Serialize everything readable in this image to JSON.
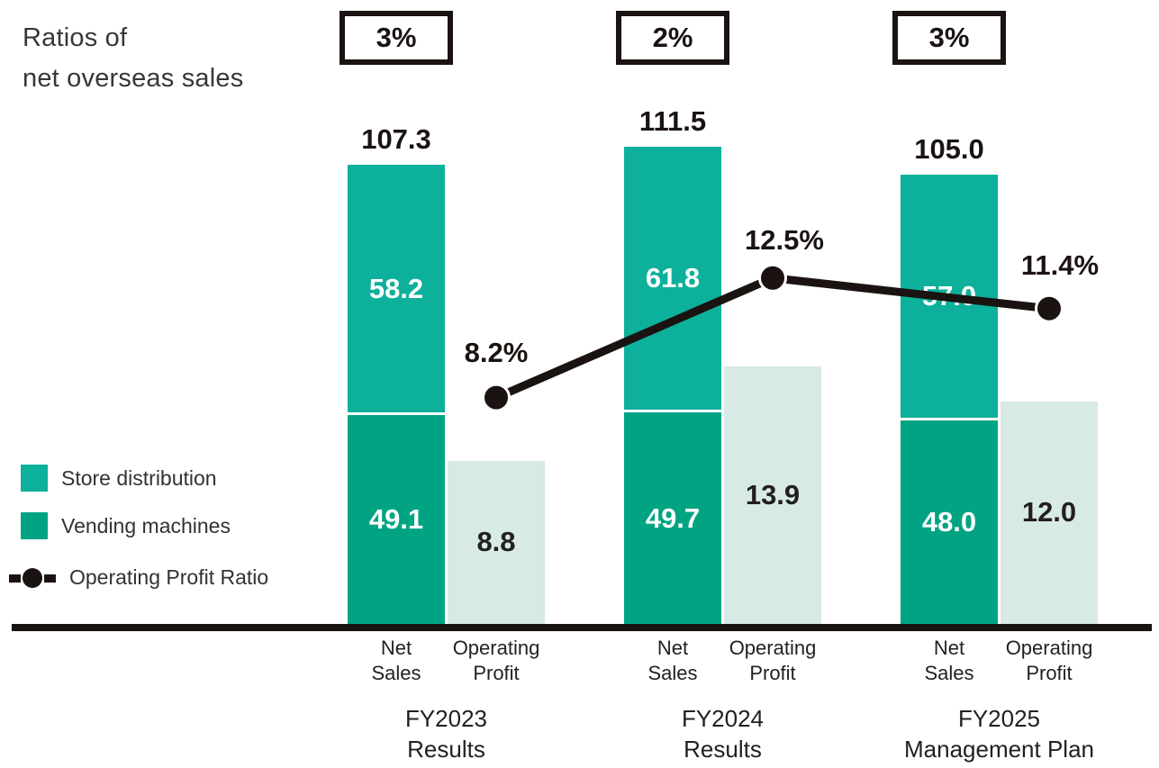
{
  "title": {
    "line1": "Ratios of",
    "line2": "net overseas sales"
  },
  "legend": {
    "items": [
      {
        "label": "Store distribution"
      },
      {
        "label": "Vending machines"
      },
      {
        "label": "Operating Profit Ratio"
      }
    ]
  },
  "colors": {
    "store_distribution": "#0db09b",
    "vending_machines": "#00a482",
    "operating_profit_bar": "#d7eae5",
    "ratio_line": "#1a1311",
    "text_dark": "#231f20"
  },
  "chart_data": {
    "type": "bar",
    "subtype": "stacked-bars-with-ratio-line",
    "title": "Ratios of net overseas sales",
    "categories": [
      "FY2023 Results",
      "FY2024 Results",
      "FY2025 Management Plan"
    ],
    "overseas_sales_ratio_boxes": [
      "3%",
      "2%",
      "3%"
    ],
    "bar_column_labels": {
      "net_sales": [
        "Net",
        "Sales"
      ],
      "operating_profit": [
        "Operating",
        "Profit"
      ]
    },
    "series": [
      {
        "name": "Store distribution",
        "values": [
          58.2,
          61.8,
          57.0
        ]
      },
      {
        "name": "Vending machines",
        "values": [
          49.1,
          49.7,
          48.0
        ]
      },
      {
        "name": "Net sales total",
        "values": [
          107.3,
          111.5,
          105.0
        ]
      },
      {
        "name": "Operating Profit",
        "values": [
          8.8,
          13.9,
          12.0
        ]
      },
      {
        "name": "Operating Profit Ratio",
        "values_percent": [
          8.2,
          12.5,
          11.4
        ]
      }
    ],
    "legend_position": "left-middle",
    "grid": false,
    "groups": [
      {
        "period_line1": "FY2023",
        "period_line2": "Results",
        "overseas_sales_ratio": "3%",
        "net_sales_total": "107.3",
        "store_distribution": "58.2",
        "vending_machines": "49.1",
        "operating_profit": "8.8",
        "operating_profit_ratio": "8.2%"
      },
      {
        "period_line1": "FY2024",
        "period_line2": "Results",
        "overseas_sales_ratio": "2%",
        "net_sales_total": "111.5",
        "store_distribution": "61.8",
        "vending_machines": "49.7",
        "operating_profit": "13.9",
        "operating_profit_ratio": "12.5%"
      },
      {
        "period_line1": "FY2025",
        "period_line2": "Management Plan",
        "overseas_sales_ratio": "3%",
        "net_sales_total": "105.0",
        "store_distribution": "57.0",
        "vending_machines": "48.0",
        "operating_profit": "12.0",
        "operating_profit_ratio": "11.4%"
      }
    ]
  }
}
